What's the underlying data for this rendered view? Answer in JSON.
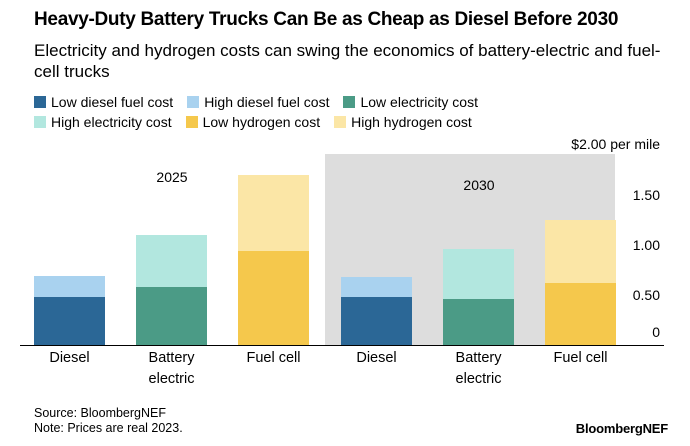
{
  "title": "Heavy-Duty Battery Trucks Can Be as Cheap as Diesel Before 2030",
  "subtitle": "Electricity and hydrogen costs can swing the economics of battery-electric and fuel-cell trucks",
  "legend": [
    {
      "label": "Low diesel fuel cost",
      "color": "#2b6796"
    },
    {
      "label": "High diesel fuel cost",
      "color": "#a9d2ef"
    },
    {
      "label": "Low electricity cost",
      "color": "#4b9b86"
    },
    {
      "label": "High electricity cost",
      "color": "#b2e7df"
    },
    {
      "label": "Low hydrogen cost",
      "color": "#f5c84c"
    },
    {
      "label": "High hydrogen cost",
      "color": "#fbe6a6"
    }
  ],
  "footer": {
    "source": "Source: BloombergNEF",
    "note": "Note: Prices are real 2023."
  },
  "brand": "BloombergNEF",
  "chart_data": {
    "type": "bar",
    "stacked": true,
    "unit_label": "$2.00 per mile",
    "yticks": [
      "0",
      "0.50",
      "1.00",
      "1.50"
    ],
    "ylim": [
      0,
      2.0
    ],
    "groups": [
      {
        "label": "2025",
        "shaded": false,
        "bars": [
          {
            "category": [
              "Diesel"
            ],
            "low": 0.48,
            "high": 0.69,
            "low_color": "#2b6796",
            "high_color": "#a9d2ef"
          },
          {
            "category": [
              "Battery",
              "electric"
            ],
            "low": 0.58,
            "high": 1.1,
            "low_color": "#4b9b86",
            "high_color": "#b2e7df"
          },
          {
            "category": [
              "Fuel cell"
            ],
            "low": 0.94,
            "high": 1.7,
            "low_color": "#f5c84c",
            "high_color": "#fbe6a6"
          }
        ]
      },
      {
        "label": "2030",
        "shaded": true,
        "bars": [
          {
            "category": [
              "Diesel"
            ],
            "low": 0.48,
            "high": 0.68,
            "low_color": "#2b6796",
            "high_color": "#a9d2ef"
          },
          {
            "category": [
              "Battery",
              "electric"
            ],
            "low": 0.46,
            "high": 0.96,
            "low_color": "#4b9b86",
            "high_color": "#b2e7df"
          },
          {
            "category": [
              "Fuel cell"
            ],
            "low": 0.62,
            "high": 1.25,
            "low_color": "#f5c84c",
            "high_color": "#fbe6a6"
          }
        ]
      }
    ]
  }
}
